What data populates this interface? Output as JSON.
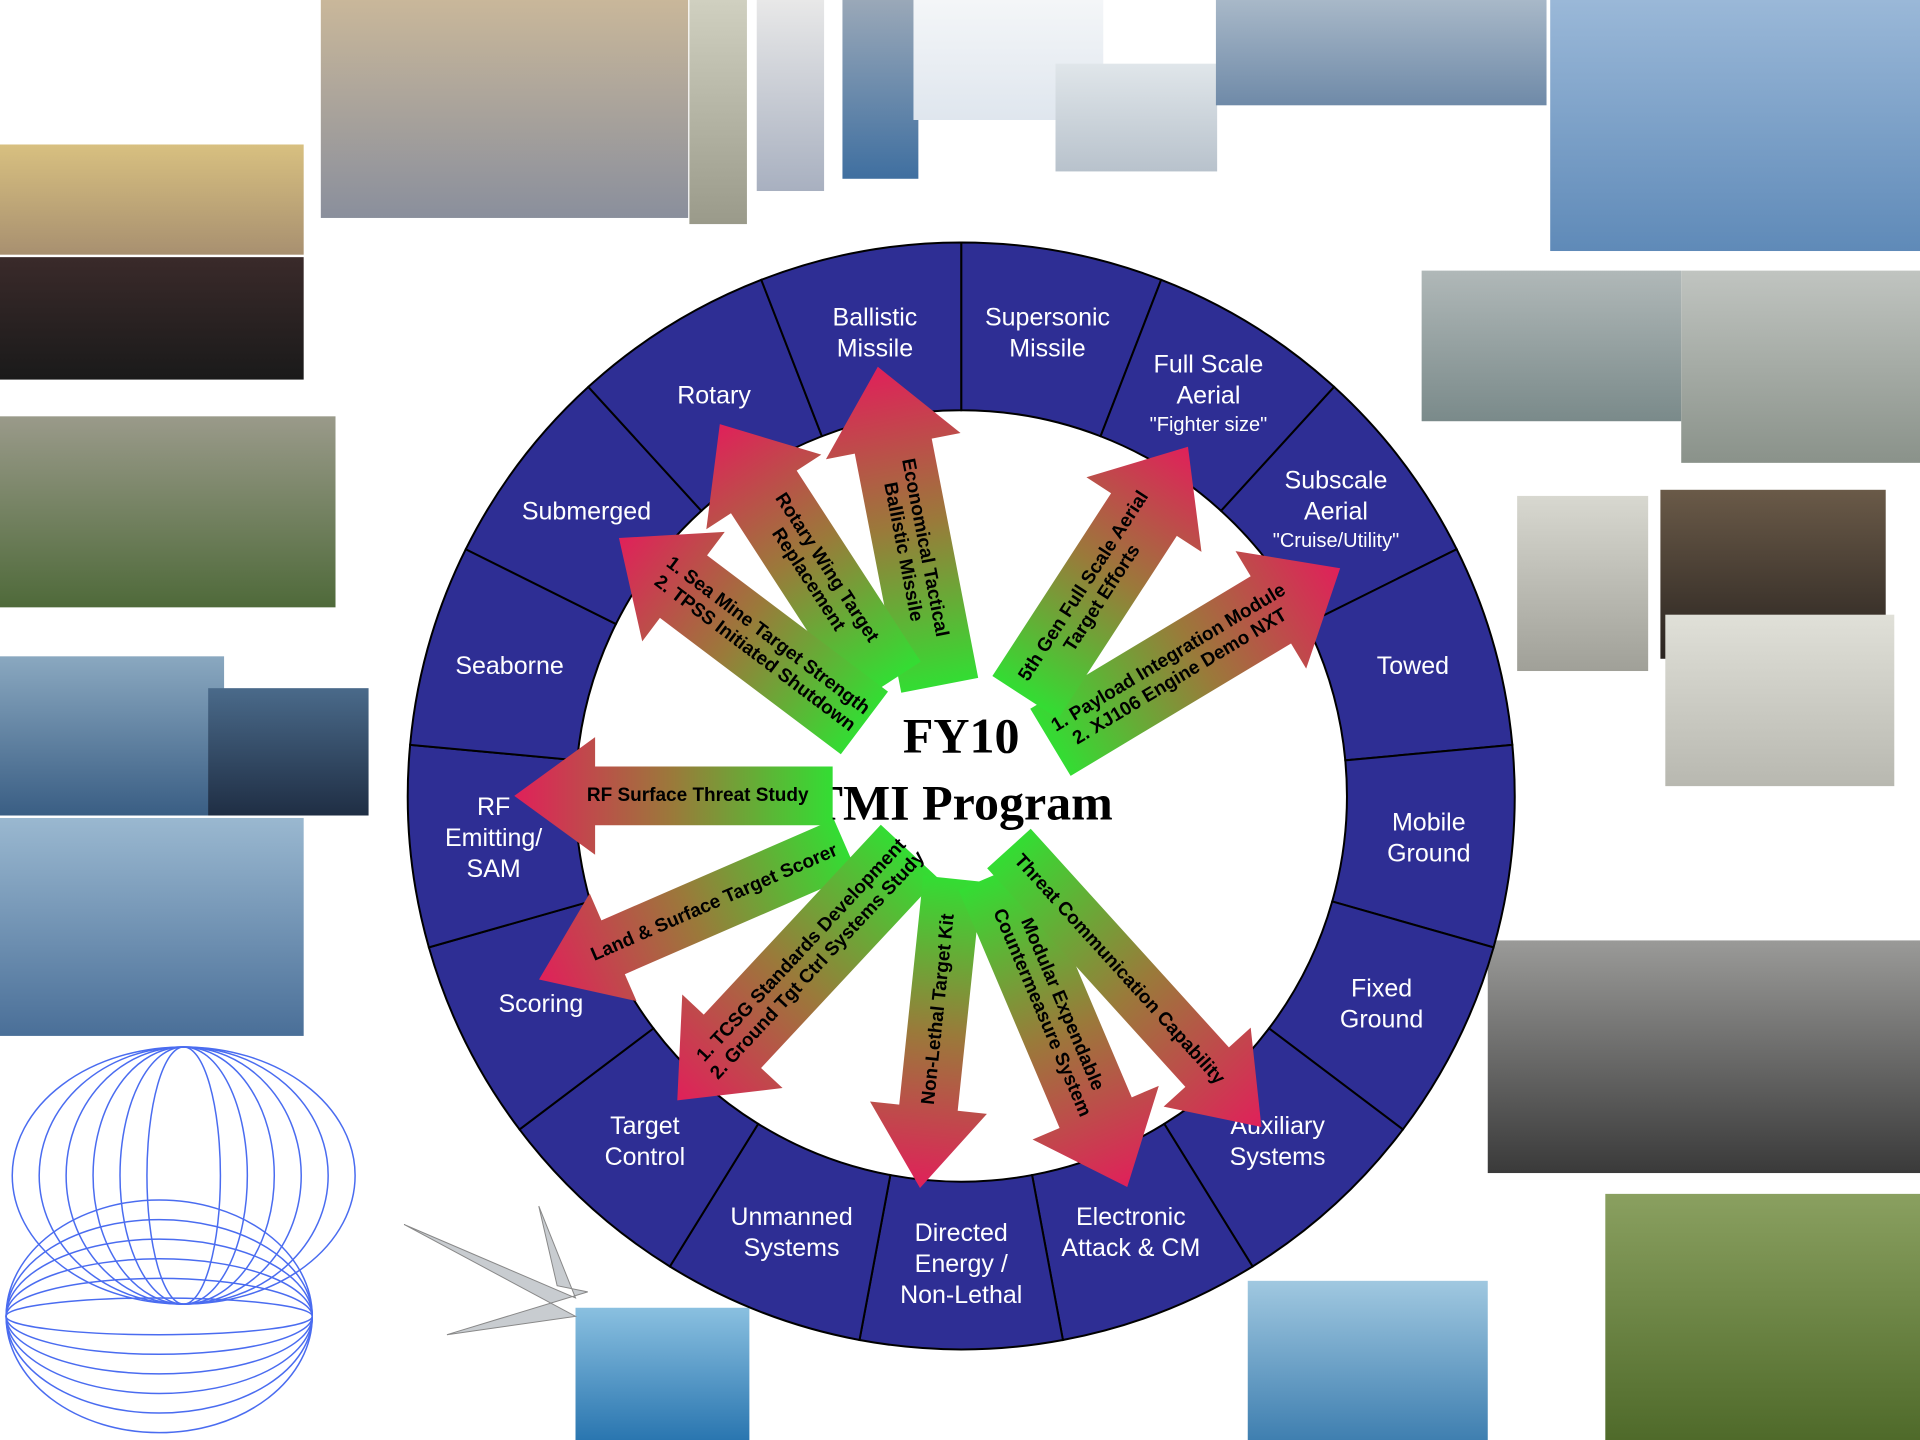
{
  "diagram": {
    "center_title": [
      "FY10",
      "TMI Program"
    ],
    "segments": [
      {
        "label": [
          "Supersonic",
          "Missile"
        ]
      },
      {
        "label": [
          "Full Scale",
          "Aerial"
        ],
        "note": "\"Fighter size\""
      },
      {
        "label": [
          "Subscale",
          "Aerial"
        ],
        "note": "\"Cruise/Utility\""
      },
      {
        "label": [
          "Towed"
        ]
      },
      {
        "label": [
          "Mobile",
          "Ground"
        ]
      },
      {
        "label": [
          "Fixed",
          "Ground"
        ]
      },
      {
        "label": [
          "Auxiliary",
          "Systems"
        ]
      },
      {
        "label": [
          "Electronic",
          "Attack & CM"
        ]
      },
      {
        "label": [
          "Directed",
          "Energy /",
          "Non-Lethal"
        ]
      },
      {
        "label": [
          "Unmanned",
          "Systems"
        ]
      },
      {
        "label": [
          "Target",
          "Control"
        ]
      },
      {
        "label": [
          "Scoring"
        ]
      },
      {
        "label": [
          "RF",
          "Emitting/",
          "SAM"
        ]
      },
      {
        "label": [
          "Seaborne"
        ]
      },
      {
        "label": [
          "Submerged"
        ]
      },
      {
        "label": [
          "Rotary"
        ]
      },
      {
        "label": [
          "Ballistic",
          "Missile"
        ]
      }
    ],
    "arrows": [
      {
        "label": [
          "Economical Tactical",
          "Ballistic Missile"
        ]
      },
      {
        "label": [
          "Rotary Wing Target",
          "Replacement"
        ]
      },
      {
        "label": [
          "1. Sea Mine Target Strength",
          "2. TPSS Initiated Shutdown"
        ]
      },
      {
        "label": [
          "RF Surface Threat Study"
        ]
      },
      {
        "label": [
          "Land & Surface Target Scorer"
        ]
      },
      {
        "label": [
          "1. TCSG Standards Development",
          "2. Ground Tgt Ctrl Systems Study"
        ]
      },
      {
        "label": [
          "Non-Lethal Target Kit"
        ]
      },
      {
        "label": [
          "Modular Expendable",
          "Countermeasure System"
        ]
      },
      {
        "label": [
          "Threat Communication Capability"
        ]
      },
      {
        "label": [
          "1. Payload Integration Module",
          "2. XJ106 Engine Demo NXT"
        ]
      },
      {
        "label": [
          "5th Gen Full Scale Aerial",
          "Target Efforts"
        ]
      }
    ]
  }
}
